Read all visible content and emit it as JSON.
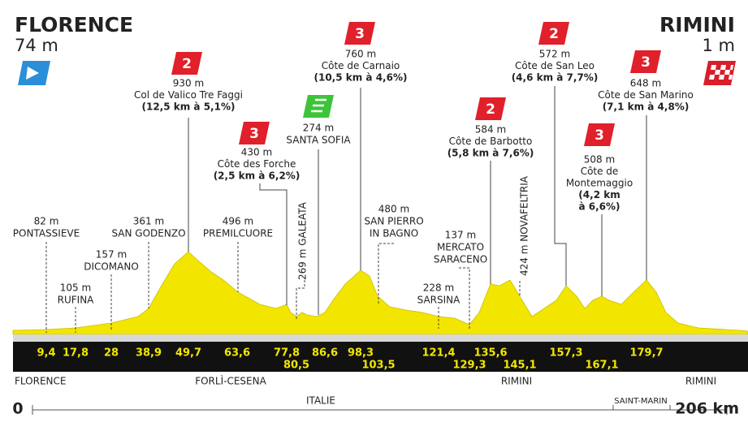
{
  "start": {
    "name": "FLORENCE",
    "altitude": "74 m"
  },
  "finish": {
    "name": "RIMINI",
    "altitude": "1 m"
  },
  "climbs": [
    {
      "category": "2",
      "altitude": "930 m",
      "name": [
        "Col de Valico Tre Faggi"
      ],
      "detail": [
        "(12,5 km à 5,1%)"
      ]
    },
    {
      "category": "3",
      "altitude": "430 m",
      "name": [
        "Côte des Forche"
      ],
      "detail": [
        "(2,5 km à 6,2%)"
      ]
    },
    {
      "category": "3",
      "altitude": "760 m",
      "name": [
        "Côte de Carnaio"
      ],
      "detail": [
        "(10,5 km à 4,6%)"
      ]
    },
    {
      "category": "2",
      "altitude": "584 m",
      "name": [
        "Côte de Barbotto"
      ],
      "detail": [
        "(5,8 km à 7,6%)"
      ]
    },
    {
      "category": "2",
      "altitude": "572 m",
      "name": [
        "Côte de San Leo"
      ],
      "detail": [
        "(4,6 km à 7,7%)"
      ]
    },
    {
      "category": "3",
      "altitude": "508 m",
      "name": [
        "Côte de",
        "Montemaggio"
      ],
      "detail": [
        "(4,2 km",
        "à 6,6%)"
      ]
    },
    {
      "category": "3",
      "altitude": "648 m",
      "name": [
        "Côte de San Marino"
      ],
      "detail": [
        "(7,1 km à 4,8%)"
      ]
    }
  ],
  "sprint": {
    "altitude": "274 m",
    "name": "SANTA SOFIA"
  },
  "places": [
    {
      "altitude": "82 m",
      "name": [
        "PONTASSIEVE"
      ]
    },
    {
      "altitude": "105 m",
      "name": [
        "RUFINA"
      ]
    },
    {
      "altitude": "157 m",
      "name": [
        "DICOMANO"
      ]
    },
    {
      "altitude": "361 m",
      "name": [
        "SAN GODENZO"
      ]
    },
    {
      "altitude": "496 m",
      "name": [
        "PREMILCUORE"
      ]
    },
    {
      "altitude": "480 m",
      "name": [
        "SAN PIERRO",
        "IN BAGNO"
      ]
    },
    {
      "altitude": "137 m",
      "name": [
        "MERCATO",
        "SARACENO"
      ]
    },
    {
      "altitude": "228 m",
      "name": [
        "SARSINA"
      ]
    }
  ],
  "vertical_places": [
    "269 m GALEATA",
    "424 m NOVAFELTRIA"
  ],
  "km_markers": [
    "9,4",
    "17,8",
    "28",
    "38,9",
    "49,7",
    "63,6",
    "77,8",
    "80,5",
    "86,6",
    "98,3",
    "103,5",
    "121,4",
    "129,3",
    "135,6",
    "145,1",
    "157,3",
    "167,1",
    "179,7"
  ],
  "regions": [
    "FLORENCE",
    "FORLÌ-CESENA",
    "RIMINI",
    "RIMINI"
  ],
  "countries": [
    "ITALIE",
    "SAINT-MARIN"
  ],
  "scale": {
    "start": "0",
    "end": "206 km"
  }
}
